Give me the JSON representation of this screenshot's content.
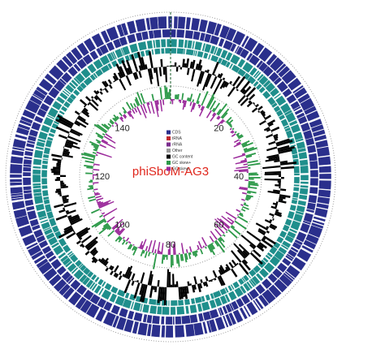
{
  "genome_map": {
    "center_label": "phiSboM-AG3",
    "scale_labels": [
      "20",
      "40",
      "60",
      "80",
      "100",
      "120",
      "140"
    ],
    "legend": [
      {
        "label": "CDS",
        "color": "#2a2f8c"
      },
      {
        "label": "tRNA",
        "color": "#c0282d"
      },
      {
        "label": "rRNA",
        "color": "#7b2d8e"
      },
      {
        "label": "Other",
        "color": "#9a9a9a"
      },
      {
        "label": "GC content",
        "color": "#000000"
      },
      {
        "label": "GC skew+",
        "color": "#2e9a4a"
      },
      {
        "label": "GC skew-",
        "color": "#9b2a9b"
      }
    ]
  }
}
